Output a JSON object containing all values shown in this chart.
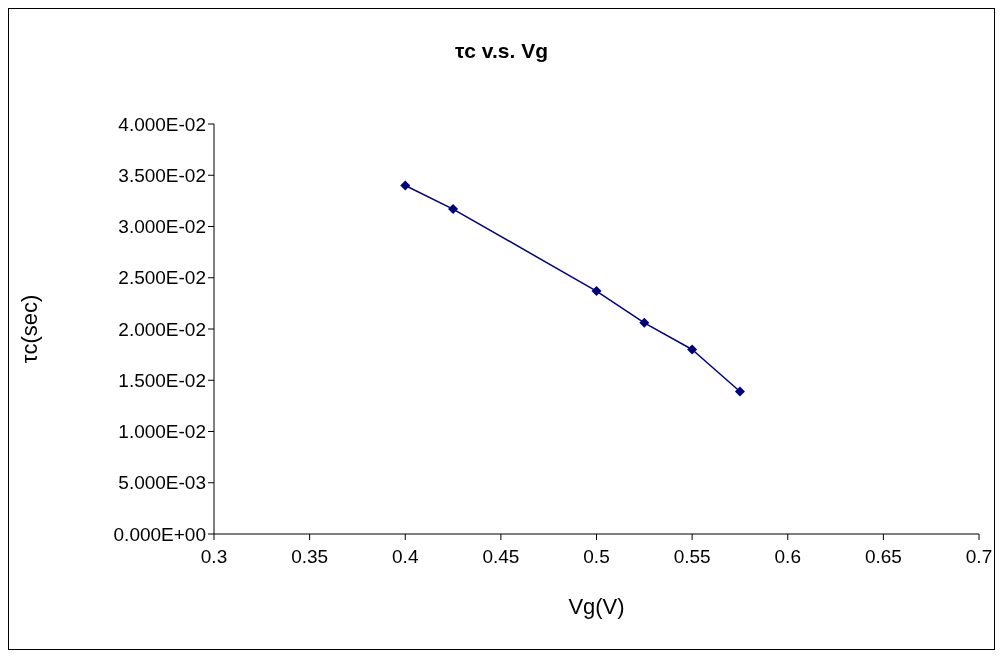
{
  "chart_data": {
    "type": "line",
    "title": "τc v.s. Vg",
    "xlabel": "Vg(V)",
    "ylabel": "τc(sec)",
    "x": [
      0.4,
      0.425,
      0.5,
      0.525,
      0.55,
      0.575
    ],
    "series": [
      {
        "color": "#000080",
        "values": [
          0.034,
          0.0317,
          0.0237,
          0.0206,
          0.018,
          0.0139
        ]
      }
    ],
    "xlim": [
      0.3,
      0.7
    ],
    "xticks": [
      0.3,
      0.35,
      0.4,
      0.45,
      0.5,
      0.55,
      0.6,
      0.65,
      0.7
    ],
    "ylim": [
      0,
      0.04
    ],
    "yticks": [
      {
        "value": 0,
        "label": "0.000E+00"
      },
      {
        "value": 0.005,
        "label": "5.000E-03"
      },
      {
        "value": 0.01,
        "label": "1.000E-02"
      },
      {
        "value": 0.015,
        "label": "1.500E-02"
      },
      {
        "value": 0.02,
        "label": "2.000E-02"
      },
      {
        "value": 0.025,
        "label": "2.500E-02"
      },
      {
        "value": 0.03,
        "label": "3.000E-02"
      },
      {
        "value": 0.035,
        "label": "3.500E-02"
      },
      {
        "value": 0.04,
        "label": "4.000E-02"
      }
    ],
    "grid": false,
    "legend": false,
    "marker": "diamond",
    "line_style": "solid"
  }
}
